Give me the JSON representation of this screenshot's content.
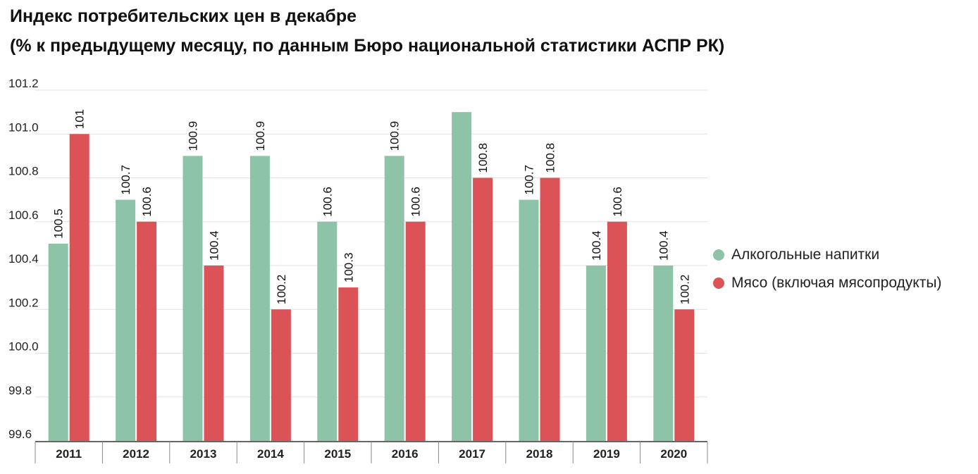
{
  "title": "Индекс потребительских цен в декабре",
  "subtitle": "(% к предыдущему месяцу, по данным Бюро национальной статистики АСПР РК)",
  "colors": {
    "alcohol": "#8dc4a7",
    "meat": "#dc5357",
    "grid": "#e2e2e2",
    "axis": "#333333"
  },
  "chart_data": {
    "type": "bar",
    "title": "Индекс потребительских цен в декабре",
    "subtitle": "(% к предыдущему месяцу, по данным Бюро национальной статистики АСПР РК)",
    "categories": [
      "2011",
      "2012",
      "2013",
      "2014",
      "2015",
      "2016",
      "2017",
      "2018",
      "2019",
      "2020"
    ],
    "series": [
      {
        "name": "Алкогольные напитки",
        "values": [
          100.5,
          100.7,
          100.9,
          100.9,
          100.6,
          100.9,
          101.1,
          100.7,
          100.4,
          100.4
        ],
        "labels": [
          "100.5",
          "100.7",
          "100.9",
          "100.9",
          "100.6",
          "100.9",
          "",
          "100.7",
          "100.4",
          "100.4"
        ]
      },
      {
        "name": "Мясо (включая мясопродукты)",
        "values": [
          101.0,
          100.6,
          100.4,
          100.2,
          100.3,
          100.6,
          100.8,
          100.8,
          100.6,
          100.2
        ],
        "labels": [
          "101",
          "100.6",
          "100.4",
          "100.2",
          "100.3",
          "100.6",
          "100.8",
          "100.8",
          "100.6",
          "100.2"
        ]
      }
    ],
    "ylim": [
      99.6,
      101.2
    ],
    "yticks": [
      "101.2",
      "101.0",
      "100.8",
      "100.6",
      "100.4",
      "100.2",
      "100.0",
      "99.8",
      "99.6"
    ],
    "grid": true,
    "legend_position": "right"
  }
}
